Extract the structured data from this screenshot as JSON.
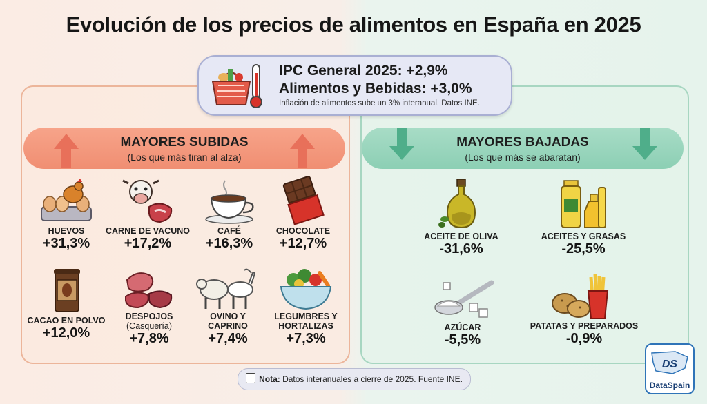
{
  "title": "Evolución de los precios de alimentos en España en 2025",
  "ipc": {
    "line1": "IPC General 2025: +2,9%",
    "line2": "Alimentos y Bebidas: +3,0%",
    "sub": "Inflación de alimentos sube un 3% interanual. Datos INE.",
    "icon": "basket-thermometer-icon"
  },
  "subidas": {
    "title": "MAYORES SUBIDAS",
    "subtitle": "(Los que más tiran al alza)",
    "color": "#f08e72",
    "items": [
      {
        "label": "HUEVOS",
        "value": "+31,3%",
        "icon": "eggs-icon"
      },
      {
        "label": "CARNE DE VACUNO",
        "value": "+17,2%",
        "icon": "beef-icon"
      },
      {
        "label": "CAFÉ",
        "value": "+16,3%",
        "icon": "coffee-icon"
      },
      {
        "label": "CHOCOLATE",
        "value": "+12,7%",
        "icon": "chocolate-icon"
      },
      {
        "label": "CACAO EN POLVO",
        "value": "+12,0%",
        "icon": "cocoa-icon"
      },
      {
        "label": "DESPOJOS",
        "label2": "(Casquería)",
        "value": "+7,8%",
        "icon": "offal-icon"
      },
      {
        "label": "OVINO Y",
        "label2": "CAPRINO",
        "value": "+7,4%",
        "icon": "sheep-goat-icon"
      },
      {
        "label": "LEGUMBRES Y",
        "label2": "HORTALIZAS",
        "value": "+7,3%",
        "icon": "vegetables-icon"
      }
    ]
  },
  "bajadas": {
    "title": "MAYORES BAJADAS",
    "subtitle": "(Los que más se abaratan)",
    "color": "#8ccfb4",
    "items": [
      {
        "label": "ACEITE DE OLIVA",
        "value": "-31,6%",
        "icon": "olive-oil-icon"
      },
      {
        "label": "ACEITES Y GRASAS",
        "value": "-25,5%",
        "icon": "oils-icon"
      },
      {
        "label": "AZÚCAR",
        "value": "-5,5%",
        "icon": "sugar-icon"
      },
      {
        "label": "PATATAS Y PREPARADOS",
        "value": "-0,9%",
        "icon": "potatoes-icon"
      }
    ]
  },
  "note": {
    "bold": "Nota:",
    "text": " Datos interanuales a cierre de 2025. Fuente INE."
  },
  "logo": {
    "text": "DataSpain",
    "mark": "DS"
  }
}
